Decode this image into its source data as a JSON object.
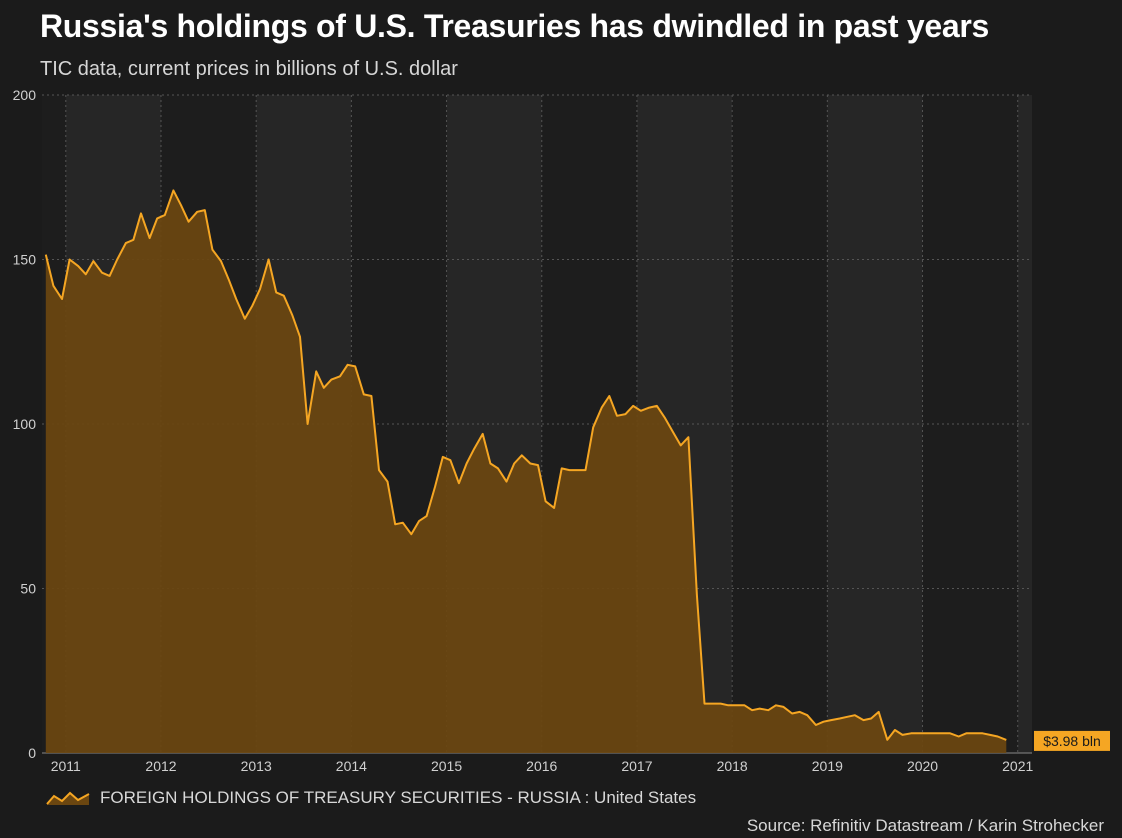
{
  "title": "Russia's holdings of U.S. Treasuries has dwindled in past years",
  "subtitle": "TIC data, current prices in billions of U.S. dollar",
  "source": "Source: Refinitiv Datastream / Karin Strohecker",
  "colors": {
    "background": "#1b1b1b",
    "line": "#f5a623",
    "area": "#6b4610",
    "band_dark": "#1d1d1d",
    "band_light": "#262626",
    "grid": "#555555",
    "axis_text": "#d0d0d0"
  },
  "chart_data": {
    "type": "area",
    "title": "Russia's holdings of U.S. Treasuries has dwindled in past years",
    "subtitle": "TIC data, current prices in billions of U.S. dollar",
    "xlabel": "",
    "ylabel": "",
    "ylim": [
      0,
      200
    ],
    "xlim": [
      2010.75,
      2021.15
    ],
    "yticks": [
      0,
      50,
      100,
      150,
      200
    ],
    "xticks": [
      2011,
      2012,
      2013,
      2014,
      2015,
      2016,
      2017,
      2018,
      2019,
      2020,
      2021
    ],
    "grid": true,
    "legend_position": "bottom-left",
    "end_label": "$3.98 bln",
    "series": [
      {
        "name": "FOREIGN HOLDINGS OF TREASURY SECURITIES - RUSSIA : United States",
        "points": [
          [
            2010.79,
            151.5
          ],
          [
            2010.87,
            142
          ],
          [
            2010.96,
            138
          ],
          [
            2011.04,
            150
          ],
          [
            2011.13,
            148
          ],
          [
            2011.21,
            145.5
          ],
          [
            2011.29,
            149.5
          ],
          [
            2011.38,
            146
          ],
          [
            2011.46,
            145
          ],
          [
            2011.54,
            150
          ],
          [
            2011.63,
            155
          ],
          [
            2011.71,
            156
          ],
          [
            2011.79,
            164
          ],
          [
            2011.88,
            156.5
          ],
          [
            2011.96,
            162.5
          ],
          [
            2012.04,
            163.5
          ],
          [
            2012.13,
            171
          ],
          [
            2012.21,
            166.5
          ],
          [
            2012.29,
            161.5
          ],
          [
            2012.38,
            164.5
          ],
          [
            2012.46,
            165
          ],
          [
            2012.54,
            153
          ],
          [
            2012.63,
            149.5
          ],
          [
            2012.71,
            144
          ],
          [
            2012.79,
            138
          ],
          [
            2012.88,
            132
          ],
          [
            2012.96,
            136
          ],
          [
            2013.04,
            141
          ],
          [
            2013.13,
            150
          ],
          [
            2013.21,
            140
          ],
          [
            2013.29,
            139
          ],
          [
            2013.38,
            133
          ],
          [
            2013.46,
            126.5
          ],
          [
            2013.54,
            100
          ],
          [
            2013.63,
            116
          ],
          [
            2013.71,
            111
          ],
          [
            2013.79,
            113.5
          ],
          [
            2013.88,
            114.5
          ],
          [
            2013.96,
            118
          ],
          [
            2014.04,
            117.5
          ],
          [
            2014.13,
            109
          ],
          [
            2014.21,
            108.5
          ],
          [
            2014.29,
            86
          ],
          [
            2014.38,
            82.5
          ],
          [
            2014.46,
            69.5
          ],
          [
            2014.54,
            70
          ],
          [
            2014.63,
            66.5
          ],
          [
            2014.71,
            70.5
          ],
          [
            2014.79,
            72
          ],
          [
            2014.88,
            81
          ],
          [
            2014.96,
            90
          ],
          [
            2015.04,
            89
          ],
          [
            2015.13,
            82
          ],
          [
            2015.21,
            88
          ],
          [
            2015.29,
            92.5
          ],
          [
            2015.38,
            97
          ],
          [
            2015.46,
            88
          ],
          [
            2015.54,
            86.5
          ],
          [
            2015.63,
            82.5
          ],
          [
            2015.71,
            88
          ],
          [
            2015.79,
            90.5
          ],
          [
            2015.88,
            88
          ],
          [
            2015.96,
            87.5
          ],
          [
            2016.04,
            76.5
          ],
          [
            2016.13,
            74.5
          ],
          [
            2016.21,
            86.5
          ],
          [
            2016.29,
            86
          ],
          [
            2016.38,
            86
          ],
          [
            2016.46,
            86
          ],
          [
            2016.54,
            99
          ],
          [
            2016.63,
            105
          ],
          [
            2016.71,
            108.5
          ],
          [
            2016.79,
            102.5
          ],
          [
            2016.88,
            103
          ],
          [
            2016.96,
            105.5
          ],
          [
            2017.04,
            104
          ],
          [
            2017.13,
            105
          ],
          [
            2017.21,
            105.5
          ],
          [
            2017.29,
            102
          ],
          [
            2017.38,
            97.5
          ],
          [
            2017.46,
            93.5
          ],
          [
            2017.54,
            96
          ],
          [
            2017.63,
            48
          ],
          [
            2017.71,
            15
          ],
          [
            2017.79,
            15
          ],
          [
            2017.88,
            15
          ],
          [
            2017.96,
            14.5
          ],
          [
            2018.04,
            14.5
          ],
          [
            2018.13,
            14.5
          ],
          [
            2018.21,
            13
          ],
          [
            2018.29,
            13.5
          ],
          [
            2018.38,
            13
          ],
          [
            2018.46,
            14.5
          ],
          [
            2018.54,
            14
          ],
          [
            2018.63,
            12
          ],
          [
            2018.71,
            12.5
          ],
          [
            2018.79,
            11.5
          ],
          [
            2018.88,
            8.5
          ],
          [
            2018.96,
            9.5
          ],
          [
            2019.04,
            10
          ],
          [
            2019.13,
            10.5
          ],
          [
            2019.21,
            11
          ],
          [
            2019.29,
            11.5
          ],
          [
            2019.38,
            10
          ],
          [
            2019.46,
            10.5
          ],
          [
            2019.54,
            12.5
          ],
          [
            2019.63,
            4
          ],
          [
            2019.71,
            7
          ],
          [
            2019.79,
            5.5
          ],
          [
            2019.88,
            6
          ],
          [
            2019.96,
            6
          ],
          [
            2020.04,
            6
          ],
          [
            2020.13,
            6
          ],
          [
            2020.21,
            6
          ],
          [
            2020.29,
            6
          ],
          [
            2020.38,
            5
          ],
          [
            2020.46,
            6
          ],
          [
            2020.54,
            6
          ],
          [
            2020.63,
            6
          ],
          [
            2020.71,
            5.5
          ],
          [
            2020.79,
            5
          ],
          [
            2020.88,
            3.98
          ]
        ]
      }
    ]
  }
}
